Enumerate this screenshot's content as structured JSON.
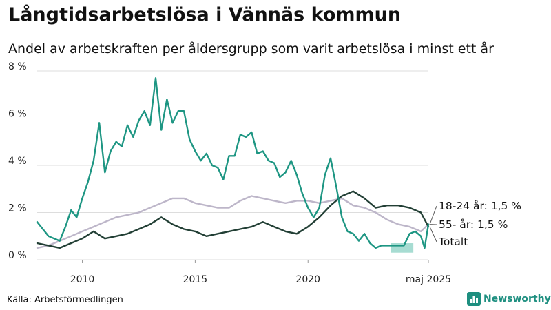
{
  "header": {
    "title": "Långtidsarbetslösa i Vännäs kommun",
    "subtitle": "Andel av arbetskraften per åldersgrupp som varit arbetslösa i minst ett år"
  },
  "footer": {
    "source": "Källa: Arbetsförmedlingen",
    "brand": "Newsworthy",
    "brand_icon": "bar-chart-icon"
  },
  "colors": {
    "age_18_24": "#1e9683",
    "age_55": "#bdb6c9",
    "total": "#223f35",
    "band": "#6cc4b4",
    "grid": "#dddddd"
  },
  "chart_data": {
    "type": "line",
    "title": "Långtidsarbetslösa i Vännäs kommun",
    "subtitle": "Andel av arbetskraften per åldersgrupp som varit arbetslösa i minst ett år",
    "xlabel": "",
    "ylabel": "",
    "xlim": [
      "2008-01",
      "2025-05"
    ],
    "ylim": [
      0,
      8
    ],
    "y_ticks": [
      "0 %",
      "2 %",
      "4 %",
      "6 %",
      "8 %"
    ],
    "y_tick_values": [
      0,
      2,
      4,
      6,
      8
    ],
    "x_ticks": [
      "2010",
      "2015",
      "2020",
      "maj 2025"
    ],
    "x_tick_values": [
      "2010-01",
      "2015-01",
      "2020-01",
      "2025-05"
    ],
    "grid": true,
    "series": [
      {
        "name": "18-24 år",
        "end_label": "18-24 år: 1,5 %",
        "x": [
          "2008-01",
          "2008-07",
          "2009-01",
          "2009-04",
          "2009-07",
          "2009-10",
          "2010-01",
          "2010-04",
          "2010-07",
          "2010-10",
          "2011-01",
          "2011-04",
          "2011-07",
          "2011-10",
          "2012-01",
          "2012-04",
          "2012-07",
          "2012-10",
          "2013-01",
          "2013-04",
          "2013-07",
          "2013-10",
          "2014-01",
          "2014-04",
          "2014-07",
          "2014-10",
          "2015-01",
          "2015-04",
          "2015-07",
          "2015-10",
          "2016-01",
          "2016-04",
          "2016-07",
          "2016-10",
          "2017-01",
          "2017-04",
          "2017-07",
          "2017-10",
          "2018-01",
          "2018-04",
          "2018-07",
          "2018-10",
          "2019-01",
          "2019-04",
          "2019-07",
          "2019-10",
          "2020-01",
          "2020-04",
          "2020-07",
          "2020-10",
          "2021-01",
          "2021-04",
          "2021-07",
          "2021-10",
          "2022-01",
          "2022-04",
          "2022-07",
          "2022-10",
          "2023-01",
          "2023-04",
          "2023-07",
          "2023-10",
          "2024-01",
          "2024-04",
          "2024-07",
          "2024-10",
          "2025-01",
          "2025-03",
          "2025-05"
        ],
        "values": [
          1.6,
          1.0,
          0.8,
          1.4,
          2.1,
          1.8,
          2.6,
          3.3,
          4.2,
          5.8,
          3.7,
          4.6,
          5.0,
          4.8,
          5.7,
          5.2,
          5.9,
          6.3,
          5.7,
          7.7,
          5.5,
          6.8,
          5.8,
          6.3,
          6.3,
          5.1,
          4.6,
          4.2,
          4.5,
          4.0,
          3.9,
          3.4,
          4.4,
          4.4,
          5.3,
          5.2,
          5.4,
          4.5,
          4.6,
          4.2,
          4.1,
          3.5,
          3.7,
          4.2,
          3.6,
          2.8,
          2.2,
          1.8,
          2.2,
          3.6,
          4.3,
          3.1,
          1.8,
          1.2,
          1.1,
          0.8,
          1.1,
          0.7,
          0.5,
          0.6,
          0.6,
          0.6,
          0.6,
          0.6,
          1.1,
          1.2,
          1.0,
          0.5,
          1.5
        ]
      },
      {
        "name": "55- år",
        "end_label": "55- år: 1,5 %",
        "x": [
          "2008-01",
          "2008-07",
          "2009-01",
          "2009-07",
          "2010-01",
          "2010-07",
          "2011-01",
          "2011-07",
          "2012-01",
          "2012-07",
          "2013-01",
          "2013-07",
          "2014-01",
          "2014-07",
          "2015-01",
          "2015-07",
          "2016-01",
          "2016-07",
          "2017-01",
          "2017-07",
          "2018-01",
          "2018-07",
          "2019-01",
          "2019-07",
          "2020-01",
          "2020-07",
          "2021-01",
          "2021-07",
          "2022-01",
          "2022-07",
          "2023-01",
          "2023-07",
          "2024-01",
          "2024-07",
          "2025-01",
          "2025-05"
        ],
        "values": [
          0.5,
          0.6,
          0.8,
          1.0,
          1.2,
          1.4,
          1.6,
          1.8,
          1.9,
          2.0,
          2.2,
          2.4,
          2.6,
          2.6,
          2.4,
          2.3,
          2.2,
          2.2,
          2.5,
          2.7,
          2.6,
          2.5,
          2.4,
          2.5,
          2.5,
          2.4,
          2.5,
          2.6,
          2.3,
          2.2,
          2.0,
          1.7,
          1.5,
          1.4,
          1.2,
          1.5
        ]
      },
      {
        "name": "Totalt",
        "end_label": "Totalt",
        "x": [
          "2008-01",
          "2008-07",
          "2009-01",
          "2009-07",
          "2010-01",
          "2010-07",
          "2011-01",
          "2011-07",
          "2012-01",
          "2012-07",
          "2013-01",
          "2013-07",
          "2014-01",
          "2014-07",
          "2015-01",
          "2015-07",
          "2016-01",
          "2016-07",
          "2017-01",
          "2017-07",
          "2018-01",
          "2018-07",
          "2019-01",
          "2019-07",
          "2020-01",
          "2020-07",
          "2021-01",
          "2021-07",
          "2022-01",
          "2022-07",
          "2023-01",
          "2023-07",
          "2024-01",
          "2024-07",
          "2025-01",
          "2025-05"
        ],
        "values": [
          0.7,
          0.6,
          0.5,
          0.7,
          0.9,
          1.2,
          0.9,
          1.0,
          1.1,
          1.3,
          1.5,
          1.8,
          1.5,
          1.3,
          1.2,
          1.0,
          1.1,
          1.2,
          1.3,
          1.4,
          1.6,
          1.4,
          1.2,
          1.1,
          1.4,
          1.8,
          2.3,
          2.7,
          2.9,
          2.6,
          2.2,
          2.3,
          2.3,
          2.2,
          2.0,
          1.4
        ]
      }
    ],
    "band": {
      "x": [
        "2023-09",
        "2024-09"
      ],
      "low": 0.3,
      "high": 0.7
    }
  }
}
